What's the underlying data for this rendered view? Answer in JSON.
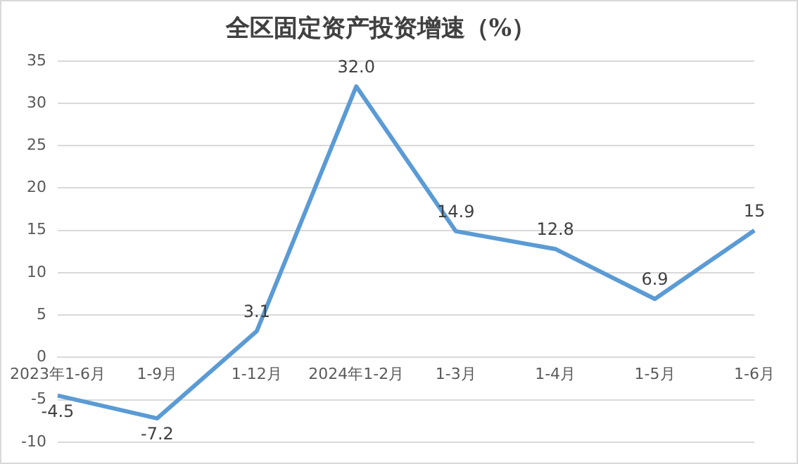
{
  "chart_data": {
    "type": "line",
    "title": "全区固定资产投资增速（%）",
    "categories": [
      "2023年1-6月",
      "1-9月",
      "1-12月",
      "2024年1-2月",
      "1-3月",
      "1-4月",
      "1-5月",
      "1-6月"
    ],
    "series": [
      {
        "color": "#5b9bd5",
        "values": [
          -4.5,
          -7.2,
          3.1,
          32.0,
          14.9,
          12.8,
          6.9,
          15
        ],
        "value_labels": [
          "-4.5",
          "-7.2",
          "3.1",
          "32.0",
          "14.9",
          "12.8",
          "6.9",
          "15"
        ]
      }
    ],
    "ylim": [
      -10,
      35
    ],
    "yticks": [
      -10,
      -5,
      0,
      5,
      10,
      15,
      20,
      25,
      30,
      35
    ],
    "grid": "y",
    "legend": false,
    "marker": "none",
    "line_style": "solid"
  }
}
